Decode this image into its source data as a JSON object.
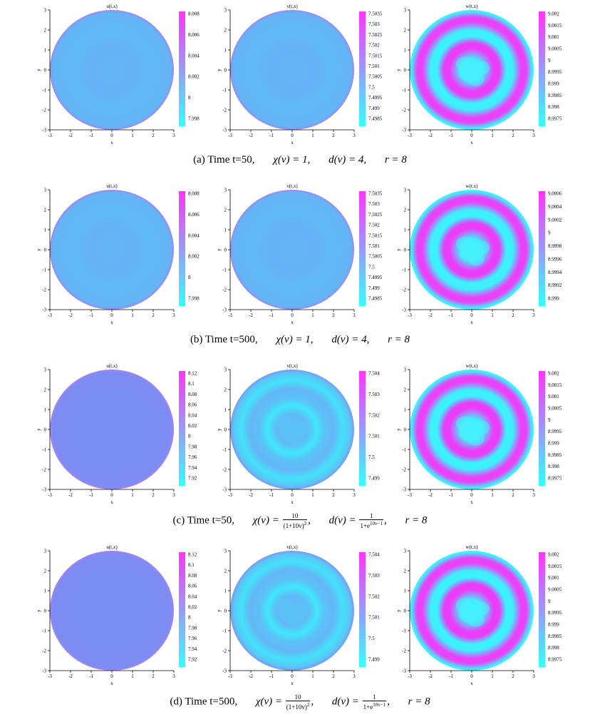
{
  "chart_data": [
    {
      "label": "(a)",
      "panels": [
        {
          "type": "heatmap",
          "title": "u(t,x)",
          "xlabel": "x",
          "ylabel": "y",
          "xlim": [
            -3,
            3
          ],
          "ylim": [
            -3,
            3
          ],
          "colorbar": [
            "8.008",
            "8.006",
            "8.004",
            "8.002",
            "8",
            "7.998"
          ],
          "pattern": "uniform"
        },
        {
          "type": "heatmap",
          "title": "v(t,x)",
          "xlabel": "x",
          "ylabel": "y",
          "xlim": [
            -3,
            3
          ],
          "ylim": [
            -3,
            3
          ],
          "colorbar": [
            "7.5035",
            "7.503",
            "7.5025",
            "7.502",
            "7.5015",
            "7.501",
            "7.5005",
            "7.5",
            "7.4995",
            "7.499",
            "7.4985"
          ],
          "pattern": "uniform"
        },
        {
          "type": "heatmap",
          "title": "w(t,x)",
          "xlabel": "x",
          "ylabel": "y",
          "xlim": [
            -3,
            3
          ],
          "ylim": [
            -3,
            3
          ],
          "colorbar": [
            "9.002",
            "9.0015",
            "9.001",
            "9.0005",
            "9",
            "8.9995",
            "8.999",
            "8.9985",
            "8.998",
            "8.9975"
          ],
          "pattern": "rings"
        }
      ]
    },
    {
      "label": "(b)",
      "panels": [
        {
          "type": "heatmap",
          "title": "u(t,x)",
          "xlabel": "x",
          "ylabel": "y",
          "xlim": [
            -3,
            3
          ],
          "ylim": [
            -3,
            3
          ],
          "colorbar": [
            "8.008",
            "8.006",
            "8.004",
            "8.002",
            "8",
            "7.998"
          ],
          "pattern": "uniform"
        },
        {
          "type": "heatmap",
          "title": "v(t,x)",
          "xlabel": "x",
          "ylabel": "y",
          "xlim": [
            -3,
            3
          ],
          "ylim": [
            -3,
            3
          ],
          "colorbar": [
            "7.5035",
            "7.503",
            "7.5025",
            "7.502",
            "7.5015",
            "7.501",
            "7.5005",
            "7.5",
            "7.4995",
            "7.499",
            "7.4985"
          ],
          "pattern": "uniform"
        },
        {
          "type": "heatmap",
          "title": "w(t,x)",
          "xlabel": "x",
          "ylabel": "y",
          "xlim": [
            -3,
            3
          ],
          "ylim": [
            -3,
            3
          ],
          "colorbar": [
            "9.0006",
            "9.0004",
            "9.0002",
            "9",
            "8.9998",
            "8.9996",
            "8.9994",
            "8.9992",
            "8.999"
          ],
          "pattern": "rings"
        }
      ]
    },
    {
      "label": "(c)",
      "panels": [
        {
          "type": "heatmap",
          "title": "u(t,x)",
          "xlabel": "x",
          "ylabel": "y",
          "xlim": [
            -3,
            3
          ],
          "ylim": [
            -3,
            3
          ],
          "colorbar": [
            "8.12",
            "8.1",
            "8.08",
            "8.06",
            "8.04",
            "8.02",
            "8",
            "7.98",
            "7.96",
            "7.94",
            "7.92"
          ],
          "pattern": "uniform-violet"
        },
        {
          "type": "heatmap",
          "title": "v(t,x)",
          "xlabel": "x",
          "ylabel": "y",
          "xlim": [
            -3,
            3
          ],
          "ylim": [
            -3,
            3
          ],
          "colorbar": [
            "7.504",
            "7.503",
            "7.502",
            "7.501",
            "7.5",
            "7.499"
          ],
          "pattern": "rings-cyan"
        },
        {
          "type": "heatmap",
          "title": "w(t,x)",
          "xlabel": "x",
          "ylabel": "y",
          "xlim": [
            -3,
            3
          ],
          "ylim": [
            -3,
            3
          ],
          "colorbar": [
            "9.002",
            "9.0015",
            "9.001",
            "9.0005",
            "9",
            "8.9995",
            "8.999",
            "8.9985",
            "8.998",
            "8.9975"
          ],
          "pattern": "rings"
        }
      ]
    },
    {
      "label": "(d)",
      "panels": [
        {
          "type": "heatmap",
          "title": "u(t,x)",
          "xlabel": "x",
          "ylabel": "y",
          "xlim": [
            -3,
            3
          ],
          "ylim": [
            -3,
            3
          ],
          "colorbar": [
            "8.12",
            "8.1",
            "8.08",
            "8.06",
            "8.04",
            "8.02",
            "8",
            "7.98",
            "7.96",
            "7.94",
            "7.92"
          ],
          "pattern": "uniform-violet"
        },
        {
          "type": "heatmap",
          "title": "v(t,x)",
          "xlabel": "x",
          "ylabel": "y",
          "xlim": [
            -3,
            3
          ],
          "ylim": [
            -3,
            3
          ],
          "colorbar": [
            "7.504",
            "7.503",
            "7.502",
            "7.501",
            "7.5",
            "7.499"
          ],
          "pattern": "rings-cyan"
        },
        {
          "type": "heatmap",
          "title": "w(t,x)",
          "xlabel": "x",
          "ylabel": "y",
          "xlim": [
            -3,
            3
          ],
          "ylim": [
            -3,
            3
          ],
          "colorbar": [
            "9.002",
            "9.0015",
            "9.001",
            "9.0005",
            "9",
            "8.9995",
            "8.999",
            "8.9985",
            "8.998",
            "8.9975"
          ],
          "pattern": "rings"
        }
      ]
    }
  ],
  "ticks": [
    "-3",
    "-2",
    "-1",
    "0",
    "1",
    "2",
    "3"
  ],
  "colors": {
    "low": "#33ffff",
    "high": "#ff33ff",
    "mid_blue": "#62b4f6",
    "violet": "#7a8ff2",
    "axis": "#000000"
  },
  "captions": {
    "a": {
      "label": "(a)",
      "time": "Time t=50,",
      "chi": "χ(v) = 1,",
      "d": "d(v) = 4,",
      "r": "r = 8"
    },
    "b": {
      "label": "(b)",
      "time": "Time t=500,",
      "chi": "χ(v) = 1,",
      "d": "d(v) = 4,",
      "r": "r = 8"
    },
    "c": {
      "label": "(c)",
      "time": "Time t=50,",
      "chi_lhs": "χ(v) =",
      "chi_num": "10",
      "chi_den": "(1+10v)",
      "chi_den_sup": "2",
      "d_lhs": "d(v) =",
      "d_num": "1",
      "d_den": "1+e",
      "d_den_sup": "10v−1",
      "r": "r = 8"
    },
    "d": {
      "label": "(d)",
      "time": "Time t=500,",
      "chi_lhs": "χ(v) =",
      "chi_num": "10",
      "chi_den": "(1+10v)",
      "chi_den_sup": "2",
      "d_lhs": "d(v) =",
      "d_num": "1",
      "d_den": "1+e",
      "d_den_sup": "10v−1",
      "r": "r = 8"
    }
  }
}
